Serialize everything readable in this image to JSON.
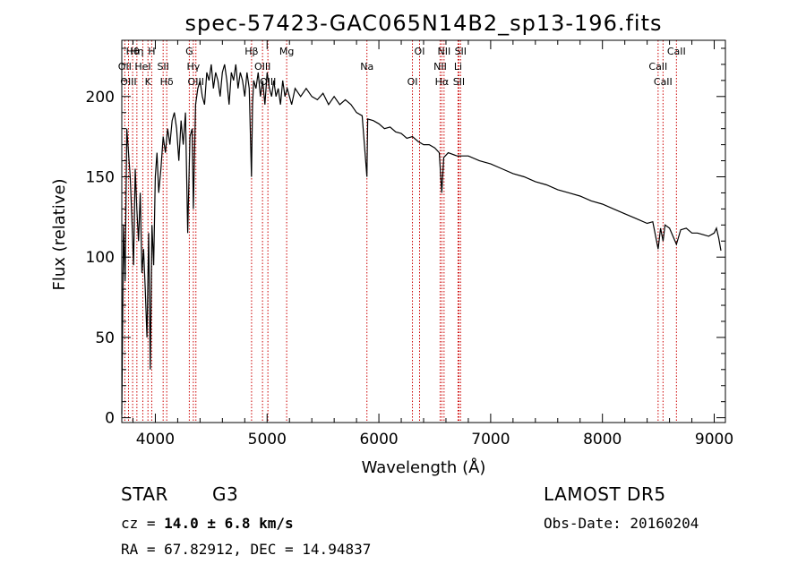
{
  "chart_data": {
    "type": "line",
    "title": "spec-57423-GAC065N14B2_sp13-196.fits",
    "xlabel": "Wavelength (Å)",
    "ylabel": "Flux (relative)",
    "xlim": [
      3700,
      9100
    ],
    "ylim": [
      -3,
      235
    ],
    "xticks": [
      4000,
      5000,
      6000,
      7000,
      8000,
      9000
    ],
    "yticks": [
      0,
      50,
      100,
      150,
      200
    ],
    "grid": false,
    "line_color": "#000000",
    "marker_color": "#cc0000",
    "series": [
      {
        "x": [
          3700,
          3715,
          3730,
          3745,
          3760,
          3775,
          3790,
          3805,
          3820,
          3835,
          3850,
          3865,
          3880,
          3895,
          3910,
          3925,
          3940,
          3955,
          3970,
          3985,
          4000,
          4015,
          4030,
          4050,
          4070,
          4090,
          4110,
          4130,
          4150,
          4170,
          4190,
          4210,
          4230,
          4250,
          4270,
          4290,
          4310,
          4330,
          4340,
          4360,
          4380,
          4400,
          4420,
          4440,
          4460,
          4480,
          4500,
          4520,
          4540,
          4560,
          4580,
          4600,
          4620,
          4640,
          4660,
          4680,
          4700,
          4720,
          4740,
          4760,
          4780,
          4800,
          4820,
          4840,
          4860,
          4870,
          4880,
          4900,
          4920,
          4940,
          4960,
          4980,
          5000,
          5020,
          5040,
          5060,
          5080,
          5100,
          5120,
          5140,
          5160,
          5180,
          5200,
          5220,
          5250,
          5300,
          5350,
          5400,
          5450,
          5500,
          5550,
          5600,
          5650,
          5700,
          5750,
          5800,
          5850,
          5893,
          5900,
          5950,
          6000,
          6050,
          6100,
          6150,
          6200,
          6250,
          6300,
          6350,
          6400,
          6450,
          6500,
          6540,
          6563,
          6580,
          6620,
          6700,
          6800,
          6900,
          7000,
          7100,
          7200,
          7300,
          7400,
          7500,
          7600,
          7700,
          7800,
          7900,
          8000,
          8100,
          8200,
          8300,
          8400,
          8450,
          8498,
          8520,
          8542,
          8560,
          8600,
          8662,
          8700,
          8750,
          8800,
          8850,
          8900,
          8950,
          9000,
          9020,
          9040,
          9060
        ],
        "y": [
          2,
          120,
          85,
          180,
          165,
          150,
          125,
          95,
          155,
          130,
          110,
          140,
          90,
          105,
          80,
          50,
          115,
          30,
          120,
          95,
          150,
          165,
          140,
          155,
          175,
          165,
          180,
          170,
          185,
          190,
          180,
          160,
          185,
          170,
          190,
          115,
          175,
          180,
          130,
          195,
          205,
          210,
          200,
          195,
          215,
          210,
          220,
          205,
          215,
          210,
          200,
          215,
          220,
          210,
          195,
          215,
          210,
          220,
          205,
          215,
          210,
          200,
          215,
          205,
          150,
          195,
          210,
          205,
          215,
          200,
          210,
          195,
          215,
          205,
          200,
          210,
          200,
          205,
          195,
          210,
          200,
          205,
          200,
          195,
          205,
          200,
          205,
          200,
          198,
          202,
          195,
          200,
          195,
          198,
          195,
          190,
          188,
          150,
          186,
          185,
          183,
          180,
          181,
          178,
          177,
          174,
          175,
          172,
          170,
          170,
          168,
          165,
          140,
          162,
          165,
          163,
          163,
          160,
          158,
          155,
          152,
          150,
          147,
          145,
          142,
          140,
          138,
          135,
          133,
          130,
          127,
          124,
          121,
          122,
          105,
          118,
          110,
          120,
          118,
          108,
          117,
          118,
          115,
          115,
          114,
          113,
          115,
          118,
          112,
          104
        ]
      }
    ],
    "line_markers": [
      {
        "label": "Hθ",
        "x": 3797
      },
      {
        "label": "OII",
        "x": 3727
      },
      {
        "label": "OIII",
        "x": 3760
      },
      {
        "label": "Hη",
        "x": 3835
      },
      {
        "label": "HeI",
        "x": 3888
      },
      {
        "label": "K",
        "x": 3934
      },
      {
        "label": "H",
        "x": 3968
      },
      {
        "label": "SII",
        "x": 4070
      },
      {
        "label": "Hδ",
        "x": 4102
      },
      {
        "label": "G",
        "x": 4304
      },
      {
        "label": "Hγ",
        "x": 4340
      },
      {
        "label": "OIII",
        "x": 4363
      },
      {
        "label": "Hβ",
        "x": 4861
      },
      {
        "label": "OIII",
        "x": 4959
      },
      {
        "label": "OIII",
        "x": 5007
      },
      {
        "label": "Mg",
        "x": 5175
      },
      {
        "label": "Na",
        "x": 5893
      },
      {
        "label": "OI",
        "x": 6300
      },
      {
        "label": "OI",
        "x": 6364
      },
      {
        "label": "NII",
        "x": 6548
      },
      {
        "label": "Hα",
        "x": 6563
      },
      {
        "label": "NII",
        "x": 6583
      },
      {
        "label": "Li",
        "x": 6708
      },
      {
        "label": "SII",
        "x": 6716
      },
      {
        "label": "SII",
        "x": 6731
      },
      {
        "label": "CaII",
        "x": 8498
      },
      {
        "label": "CaII",
        "x": 8542
      },
      {
        "label": "CaII",
        "x": 8662
      }
    ]
  },
  "info": {
    "object_class": "STAR",
    "subclass": "G3",
    "survey": "LAMOST DR5",
    "cz_label": "cz = ",
    "cz_value": "14.0 ± 6.8 km/s",
    "obs_date": "Obs-Date: 20160204",
    "coords": "RA =  67.82912, DEC =  14.94837"
  }
}
